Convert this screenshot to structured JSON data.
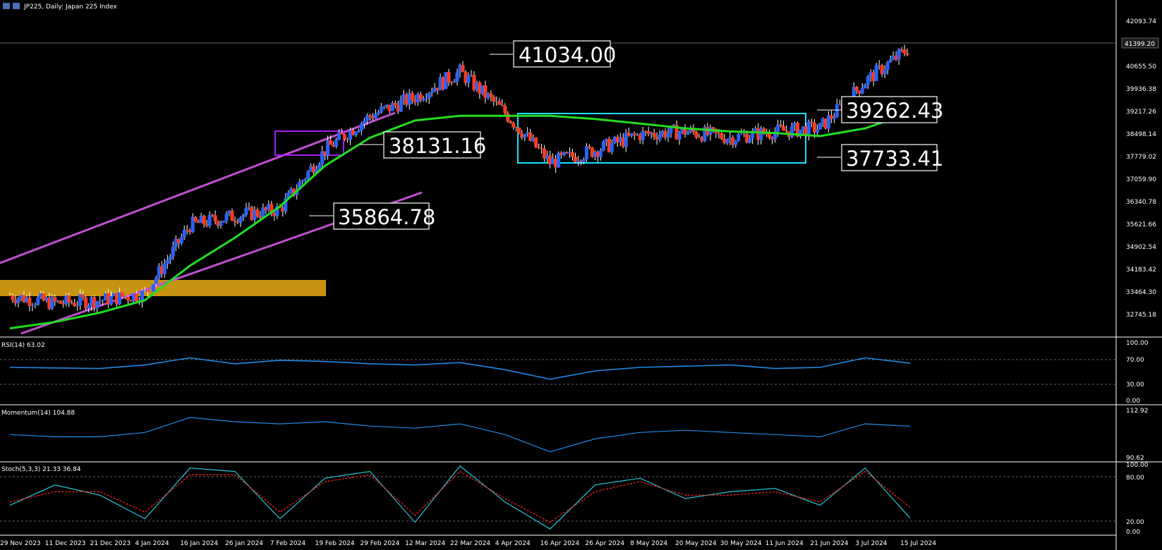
{
  "header": {
    "title": "JP225, Daily:  Japan 225 Index"
  },
  "colors": {
    "background": "#000000",
    "bull": "#2962ff",
    "bear": "#ff3b1f",
    "ma": "#22dd22",
    "channel": "#c050d0",
    "support_zone": "#c8930e",
    "range_box": "#19e0ff",
    "flag_box": "#a020f0",
    "rsi_line": "#1e88e5",
    "stoch_main": "#26c6da",
    "stoch_signal": "#ff2020"
  },
  "price_axis_labels": [
    "42093.74",
    "40655.50",
    "39936.38",
    "39217.26",
    "38498.14",
    "37779.02",
    "37059.90",
    "36340.78",
    "35621.66",
    "34902.54",
    "34183.42",
    "33464.30",
    "32745.18"
  ],
  "current_price": "41399.20",
  "annotations": {
    "a1": "41034.00",
    "a2": "38131.16",
    "a3": "35864.78",
    "a4": "39262.43",
    "a5": "37733.41"
  },
  "rsi": {
    "title": "RSI(14) 63.02",
    "levels": [
      "100.00",
      "70.00",
      "30.00",
      "0.00"
    ]
  },
  "momentum": {
    "title": "Momentum(14) 104.88",
    "levels": [
      "112.92",
      "90.62"
    ]
  },
  "stoch": {
    "title": "Stoch(5,3,3) 21.33 36.84",
    "levels": [
      "100.00",
      "80.00",
      "20.00",
      "0.00"
    ]
  },
  "date_labels": [
    "29 Nov 2023",
    "11 Dec 2023",
    "21 Dec 2023",
    "4 Jan 2024",
    "16 Jan 2024",
    "26 Jan 2024",
    "7 Feb 2024",
    "19 Feb 2024",
    "29 Feb 2024",
    "12 Mar 2024",
    "22 Mar 2024",
    "4 Apr 2024",
    "16 Apr 2024",
    "26 Apr 2024",
    "8 May 2024",
    "20 May 2024",
    "30 May 2024",
    "11 Jun 2024",
    "21 Jun 2024",
    "3 Jul 2024",
    "15 Jul 2024"
  ],
  "chart_data": {
    "type": "line",
    "title": "JP225, Daily:  Japan 225 Index",
    "x": [
      "29 Nov 2023",
      "11 Dec 2023",
      "21 Dec 2023",
      "4 Jan 2024",
      "16 Jan 2024",
      "26 Jan 2024",
      "7 Feb 2024",
      "19 Feb 2024",
      "29 Feb 2024",
      "12 Mar 2024",
      "22 Mar 2024",
      "4 Apr 2024",
      "16 Apr 2024",
      "26 Apr 2024",
      "8 May 2024",
      "20 May 2024",
      "30 May 2024",
      "11 Jun 2024",
      "21 Jun 2024",
      "3 Jul 2024",
      "15 Jul 2024"
    ],
    "ylim": [
      32300,
      42500
    ],
    "series": [
      {
        "values": [
          33450,
          33200,
          33300,
          33500,
          35700,
          36000,
          36200,
          38100,
          39200,
          39800,
          40600,
          39300,
          37700,
          38100,
          38600,
          38700,
          38500,
          38700,
          38800,
          40300,
          41399
        ]
      }
    ],
    "ma": [
      32400,
      32600,
      32900,
      33300,
      34400,
      35300,
      36300,
      37600,
      38500,
      39050,
      39200,
      39200,
      39200,
      39100,
      38950,
      38800,
      38700,
      38650,
      38550,
      38800,
      39300
    ],
    "rsi": [
      56,
      55,
      54,
      60,
      72,
      62,
      68,
      66,
      62,
      60,
      64,
      52,
      36,
      50,
      56,
      58,
      60,
      54,
      56,
      72,
      63
    ],
    "momentum": [
      101,
      100,
      100,
      102,
      109,
      107,
      106,
      107,
      105,
      104,
      106,
      101,
      93,
      99,
      102,
      103,
      102,
      101,
      100,
      106,
      104.9
    ],
    "stoch_k": [
      40,
      70,
      55,
      20,
      95,
      90,
      20,
      80,
      90,
      15,
      98,
      45,
      5,
      70,
      80,
      50,
      60,
      65,
      40,
      95,
      21
    ],
    "stoch_d": [
      45,
      60,
      60,
      30,
      85,
      85,
      30,
      75,
      85,
      25,
      90,
      50,
      15,
      60,
      75,
      55,
      55,
      60,
      45,
      90,
      37
    ]
  }
}
